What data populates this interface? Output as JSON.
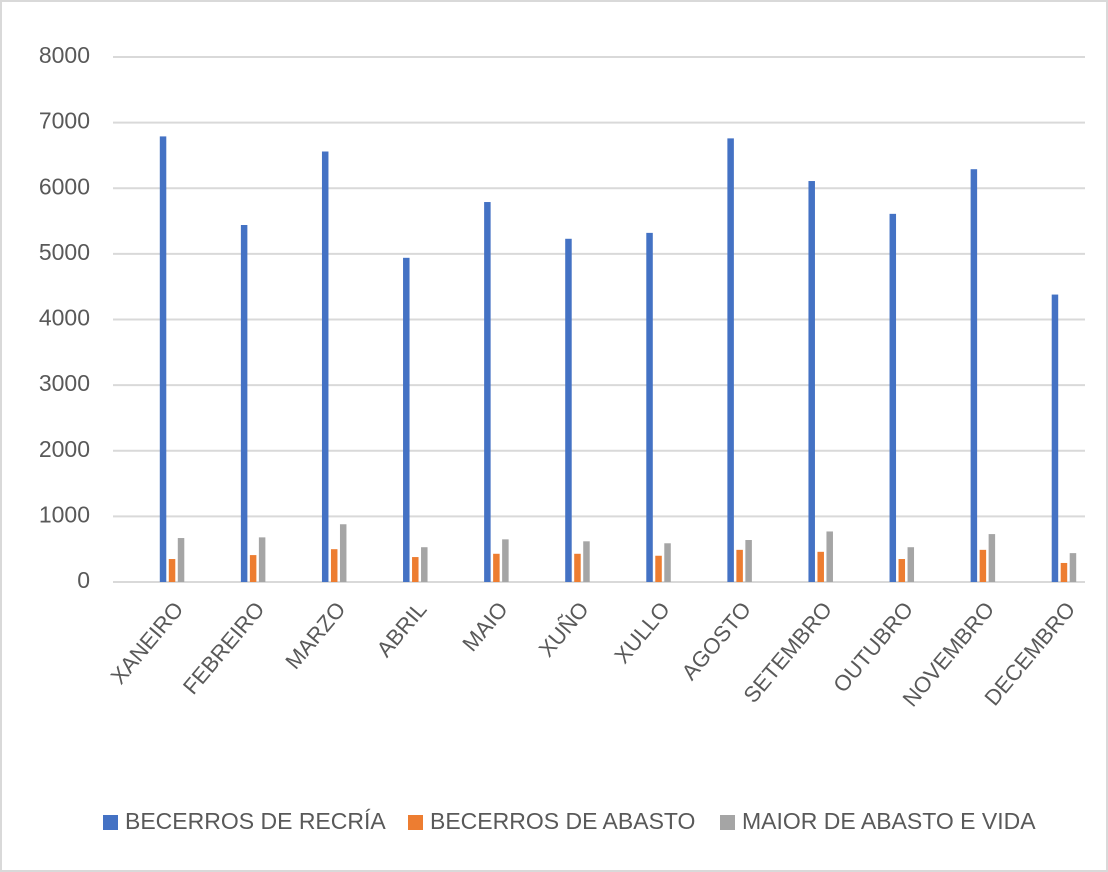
{
  "chart_data": {
    "type": "bar",
    "categories": [
      "XANEIRO",
      "FEBREIRO",
      "MARZO",
      "ABRIL",
      "MAIO",
      "XUÑO",
      "XULLO",
      "AGOSTO",
      "SETEMBRO",
      "OUTUBRO",
      "NOVEMBRO",
      "DECEMBRO"
    ],
    "series": [
      {
        "name": "BECERROS DE RECRÍA",
        "color": "#4472c4",
        "values": [
          6790,
          5440,
          6560,
          4940,
          5790,
          5230,
          5320,
          6760,
          6110,
          5610,
          6290,
          4380
        ]
      },
      {
        "name": "BECERROS DE ABASTO",
        "color": "#ed7d31",
        "values": [
          350,
          410,
          500,
          380,
          430,
          430,
          400,
          490,
          460,
          350,
          490,
          290
        ]
      },
      {
        "name": "MAIOR DE ABASTO E VIDA",
        "color": "#a5a5a5",
        "values": [
          670,
          680,
          880,
          530,
          650,
          620,
          590,
          640,
          770,
          530,
          730,
          440
        ]
      }
    ],
    "ylim": [
      0,
      8000
    ],
    "yticks": [
      0,
      1000,
      2000,
      3000,
      4000,
      5000,
      6000,
      7000,
      8000
    ],
    "grid": true,
    "legend": "bottom"
  }
}
